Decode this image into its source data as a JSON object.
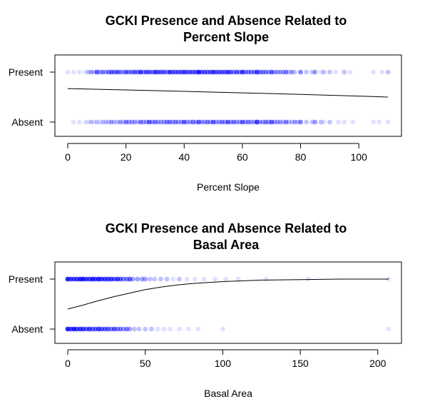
{
  "chart_data": [
    {
      "type": "scatter",
      "title_lines": [
        "GCKI Presence and Absence Related to",
        "Percent Slope"
      ],
      "xlabel": "Percent Slope",
      "ylabel": "",
      "xlim": [
        0,
        110
      ],
      "xticks": [
        0,
        20,
        40,
        60,
        80,
        100
      ],
      "yticks": [
        {
          "value": 1,
          "label": "Present"
        },
        {
          "value": 0,
          "label": "Absent"
        }
      ],
      "point_color": "#0000ff",
      "line_color": "#000000",
      "curve": [
        [
          0,
          0.67
        ],
        [
          20,
          0.643
        ],
        [
          40,
          0.615
        ],
        [
          60,
          0.585
        ],
        [
          80,
          0.555
        ],
        [
          100,
          0.52
        ],
        [
          110,
          0.5
        ]
      ],
      "present": [
        {
          "x": 0,
          "d": 1
        },
        {
          "x": 2,
          "d": 1
        },
        {
          "x": 4,
          "d": 1
        },
        {
          "x": 6,
          "d": 1
        },
        {
          "x": 7,
          "d": 2
        },
        {
          "x": 8,
          "d": 3
        },
        {
          "x": 9,
          "d": 2
        },
        {
          "x": 10,
          "d": 5
        },
        {
          "x": 11,
          "d": 3
        },
        {
          "x": 12,
          "d": 4
        },
        {
          "x": 13,
          "d": 3
        },
        {
          "x": 14,
          "d": 4
        },
        {
          "x": 15,
          "d": 5
        },
        {
          "x": 16,
          "d": 4
        },
        {
          "x": 17,
          "d": 5
        },
        {
          "x": 18,
          "d": 4
        },
        {
          "x": 19,
          "d": 3
        },
        {
          "x": 20,
          "d": 5
        },
        {
          "x": 21,
          "d": 4
        },
        {
          "x": 22,
          "d": 4
        },
        {
          "x": 23,
          "d": 5
        },
        {
          "x": 24,
          "d": 4
        },
        {
          "x": 25,
          "d": 6
        },
        {
          "x": 26,
          "d": 4
        },
        {
          "x": 27,
          "d": 5
        },
        {
          "x": 28,
          "d": 5
        },
        {
          "x": 29,
          "d": 4
        },
        {
          "x": 30,
          "d": 6
        },
        {
          "x": 31,
          "d": 5
        },
        {
          "x": 32,
          "d": 5
        },
        {
          "x": 33,
          "d": 5
        },
        {
          "x": 34,
          "d": 4
        },
        {
          "x": 35,
          "d": 6
        },
        {
          "x": 36,
          "d": 5
        },
        {
          "x": 37,
          "d": 5
        },
        {
          "x": 38,
          "d": 5
        },
        {
          "x": 39,
          "d": 5
        },
        {
          "x": 40,
          "d": 6
        },
        {
          "x": 41,
          "d": 5
        },
        {
          "x": 42,
          "d": 5
        },
        {
          "x": 43,
          "d": 5
        },
        {
          "x": 44,
          "d": 5
        },
        {
          "x": 45,
          "d": 7
        },
        {
          "x": 46,
          "d": 5
        },
        {
          "x": 47,
          "d": 5
        },
        {
          "x": 48,
          "d": 5
        },
        {
          "x": 49,
          "d": 5
        },
        {
          "x": 50,
          "d": 6
        },
        {
          "x": 51,
          "d": 5
        },
        {
          "x": 52,
          "d": 5
        },
        {
          "x": 53,
          "d": 5
        },
        {
          "x": 54,
          "d": 5
        },
        {
          "x": 55,
          "d": 6
        },
        {
          "x": 56,
          "d": 5
        },
        {
          "x": 57,
          "d": 4
        },
        {
          "x": 58,
          "d": 5
        },
        {
          "x": 59,
          "d": 4
        },
        {
          "x": 60,
          "d": 6
        },
        {
          "x": 61,
          "d": 4
        },
        {
          "x": 62,
          "d": 4
        },
        {
          "x": 63,
          "d": 4
        },
        {
          "x": 64,
          "d": 4
        },
        {
          "x": 65,
          "d": 6
        },
        {
          "x": 66,
          "d": 4
        },
        {
          "x": 67,
          "d": 4
        },
        {
          "x": 68,
          "d": 4
        },
        {
          "x": 69,
          "d": 3
        },
        {
          "x": 70,
          "d": 5
        },
        {
          "x": 71,
          "d": 3
        },
        {
          "x": 72,
          "d": 3
        },
        {
          "x": 73,
          "d": 3
        },
        {
          "x": 74,
          "d": 3
        },
        {
          "x": 75,
          "d": 4
        },
        {
          "x": 76,
          "d": 2
        },
        {
          "x": 77,
          "d": 3
        },
        {
          "x": 78,
          "d": 2
        },
        {
          "x": 80,
          "d": 4
        },
        {
          "x": 82,
          "d": 2
        },
        {
          "x": 84,
          "d": 2
        },
        {
          "x": 85,
          "d": 3
        },
        {
          "x": 87,
          "d": 1
        },
        {
          "x": 88,
          "d": 2
        },
        {
          "x": 90,
          "d": 2
        },
        {
          "x": 92,
          "d": 1
        },
        {
          "x": 95,
          "d": 2
        },
        {
          "x": 97,
          "d": 1
        },
        {
          "x": 105,
          "d": 1
        },
        {
          "x": 108,
          "d": 1
        },
        {
          "x": 110,
          "d": 2
        }
      ],
      "absent": [
        {
          "x": 2,
          "d": 1
        },
        {
          "x": 4,
          "d": 1
        },
        {
          "x": 6,
          "d": 1
        },
        {
          "x": 7,
          "d": 1
        },
        {
          "x": 8,
          "d": 2
        },
        {
          "x": 9,
          "d": 1
        },
        {
          "x": 10,
          "d": 2
        },
        {
          "x": 11,
          "d": 1
        },
        {
          "x": 12,
          "d": 2
        },
        {
          "x": 13,
          "d": 2
        },
        {
          "x": 14,
          "d": 2
        },
        {
          "x": 15,
          "d": 3
        },
        {
          "x": 16,
          "d": 2
        },
        {
          "x": 17,
          "d": 2
        },
        {
          "x": 18,
          "d": 3
        },
        {
          "x": 19,
          "d": 2
        },
        {
          "x": 20,
          "d": 4
        },
        {
          "x": 21,
          "d": 3
        },
        {
          "x": 22,
          "d": 3
        },
        {
          "x": 23,
          "d": 3
        },
        {
          "x": 24,
          "d": 2
        },
        {
          "x": 25,
          "d": 4
        },
        {
          "x": 26,
          "d": 3
        },
        {
          "x": 27,
          "d": 3
        },
        {
          "x": 28,
          "d": 5
        },
        {
          "x": 29,
          "d": 3
        },
        {
          "x": 30,
          "d": 4
        },
        {
          "x": 31,
          "d": 3
        },
        {
          "x": 32,
          "d": 3
        },
        {
          "x": 33,
          "d": 3
        },
        {
          "x": 34,
          "d": 4
        },
        {
          "x": 35,
          "d": 4
        },
        {
          "x": 36,
          "d": 3
        },
        {
          "x": 37,
          "d": 4
        },
        {
          "x": 38,
          "d": 3
        },
        {
          "x": 39,
          "d": 3
        },
        {
          "x": 40,
          "d": 5
        },
        {
          "x": 41,
          "d": 3
        },
        {
          "x": 42,
          "d": 3
        },
        {
          "x": 43,
          "d": 4
        },
        {
          "x": 44,
          "d": 3
        },
        {
          "x": 45,
          "d": 5
        },
        {
          "x": 46,
          "d": 3
        },
        {
          "x": 47,
          "d": 3
        },
        {
          "x": 48,
          "d": 4
        },
        {
          "x": 49,
          "d": 3
        },
        {
          "x": 50,
          "d": 5
        },
        {
          "x": 51,
          "d": 3
        },
        {
          "x": 52,
          "d": 3
        },
        {
          "x": 53,
          "d": 4
        },
        {
          "x": 54,
          "d": 3
        },
        {
          "x": 55,
          "d": 5
        },
        {
          "x": 56,
          "d": 3
        },
        {
          "x": 57,
          "d": 4
        },
        {
          "x": 58,
          "d": 3
        },
        {
          "x": 59,
          "d": 3
        },
        {
          "x": 60,
          "d": 5
        },
        {
          "x": 61,
          "d": 3
        },
        {
          "x": 62,
          "d": 4
        },
        {
          "x": 63,
          "d": 3
        },
        {
          "x": 64,
          "d": 3
        },
        {
          "x": 65,
          "d": 6
        },
        {
          "x": 66,
          "d": 3
        },
        {
          "x": 67,
          "d": 3
        },
        {
          "x": 68,
          "d": 4
        },
        {
          "x": 69,
          "d": 3
        },
        {
          "x": 70,
          "d": 5
        },
        {
          "x": 71,
          "d": 3
        },
        {
          "x": 72,
          "d": 3
        },
        {
          "x": 73,
          "d": 3
        },
        {
          "x": 74,
          "d": 2
        },
        {
          "x": 75,
          "d": 4
        },
        {
          "x": 76,
          "d": 2
        },
        {
          "x": 77,
          "d": 2
        },
        {
          "x": 78,
          "d": 3
        },
        {
          "x": 79,
          "d": 2
        },
        {
          "x": 80,
          "d": 4
        },
        {
          "x": 82,
          "d": 2
        },
        {
          "x": 84,
          "d": 2
        },
        {
          "x": 85,
          "d": 3
        },
        {
          "x": 87,
          "d": 2
        },
        {
          "x": 88,
          "d": 1
        },
        {
          "x": 90,
          "d": 2
        },
        {
          "x": 93,
          "d": 1
        },
        {
          "x": 95,
          "d": 1
        },
        {
          "x": 98,
          "d": 1
        },
        {
          "x": 105,
          "d": 1
        },
        {
          "x": 107,
          "d": 1
        },
        {
          "x": 110,
          "d": 1
        }
      ]
    },
    {
      "type": "scatter",
      "title_lines": [
        "GCKI Presence and Absence Related to",
        "Basal Area"
      ],
      "xlabel": "Basal Area",
      "ylabel": "",
      "xlim": [
        0,
        207
      ],
      "xticks": [
        0,
        50,
        100,
        150,
        200
      ],
      "yticks": [
        {
          "value": 1,
          "label": "Present"
        },
        {
          "value": 0,
          "label": "Absent"
        }
      ],
      "point_color": "#0000ff",
      "line_color": "#000000",
      "curve": [
        [
          0,
          0.4
        ],
        [
          10,
          0.48
        ],
        [
          20,
          0.57
        ],
        [
          30,
          0.65
        ],
        [
          40,
          0.72
        ],
        [
          50,
          0.79
        ],
        [
          60,
          0.84
        ],
        [
          70,
          0.88
        ],
        [
          80,
          0.91
        ],
        [
          100,
          0.95
        ],
        [
          125,
          0.98
        ],
        [
          150,
          0.99
        ],
        [
          175,
          1.0
        ],
        [
          207,
          1.0
        ]
      ],
      "present": [
        {
          "x": 0,
          "d": 7
        },
        {
          "x": 2,
          "d": 6
        },
        {
          "x": 4,
          "d": 6
        },
        {
          "x": 6,
          "d": 6
        },
        {
          "x": 8,
          "d": 7
        },
        {
          "x": 10,
          "d": 7
        },
        {
          "x": 12,
          "d": 6
        },
        {
          "x": 14,
          "d": 6
        },
        {
          "x": 16,
          "d": 7
        },
        {
          "x": 18,
          "d": 6
        },
        {
          "x": 20,
          "d": 7
        },
        {
          "x": 22,
          "d": 6
        },
        {
          "x": 24,
          "d": 6
        },
        {
          "x": 26,
          "d": 6
        },
        {
          "x": 28,
          "d": 6
        },
        {
          "x": 30,
          "d": 5
        },
        {
          "x": 32,
          "d": 6
        },
        {
          "x": 34,
          "d": 5
        },
        {
          "x": 36,
          "d": 4
        },
        {
          "x": 38,
          "d": 4
        },
        {
          "x": 40,
          "d": 5
        },
        {
          "x": 42,
          "d": 3
        },
        {
          "x": 45,
          "d": 3
        },
        {
          "x": 48,
          "d": 3
        },
        {
          "x": 50,
          "d": 3
        },
        {
          "x": 53,
          "d": 2
        },
        {
          "x": 56,
          "d": 2
        },
        {
          "x": 60,
          "d": 2
        },
        {
          "x": 64,
          "d": 2
        },
        {
          "x": 68,
          "d": 1
        },
        {
          "x": 72,
          "d": 2
        },
        {
          "x": 77,
          "d": 1
        },
        {
          "x": 82,
          "d": 1
        },
        {
          "x": 88,
          "d": 1
        },
        {
          "x": 95,
          "d": 1
        },
        {
          "x": 102,
          "d": 1
        },
        {
          "x": 110,
          "d": 1
        },
        {
          "x": 128,
          "d": 1
        },
        {
          "x": 155,
          "d": 1
        },
        {
          "x": 207,
          "d": 1
        }
      ],
      "absent": [
        {
          "x": 0,
          "d": 7
        },
        {
          "x": 2,
          "d": 6
        },
        {
          "x": 4,
          "d": 7
        },
        {
          "x": 6,
          "d": 6
        },
        {
          "x": 8,
          "d": 6
        },
        {
          "x": 10,
          "d": 6
        },
        {
          "x": 12,
          "d": 5
        },
        {
          "x": 14,
          "d": 6
        },
        {
          "x": 16,
          "d": 5
        },
        {
          "x": 18,
          "d": 5
        },
        {
          "x": 20,
          "d": 6
        },
        {
          "x": 22,
          "d": 5
        },
        {
          "x": 24,
          "d": 5
        },
        {
          "x": 26,
          "d": 5
        },
        {
          "x": 28,
          "d": 4
        },
        {
          "x": 30,
          "d": 5
        },
        {
          "x": 32,
          "d": 4
        },
        {
          "x": 34,
          "d": 4
        },
        {
          "x": 36,
          "d": 3
        },
        {
          "x": 38,
          "d": 4
        },
        {
          "x": 40,
          "d": 3
        },
        {
          "x": 43,
          "d": 2
        },
        {
          "x": 46,
          "d": 2
        },
        {
          "x": 50,
          "d": 2
        },
        {
          "x": 54,
          "d": 2
        },
        {
          "x": 58,
          "d": 1
        },
        {
          "x": 62,
          "d": 1
        },
        {
          "x": 66,
          "d": 1
        },
        {
          "x": 72,
          "d": 1
        },
        {
          "x": 78,
          "d": 1
        },
        {
          "x": 84,
          "d": 1
        },
        {
          "x": 100,
          "d": 1
        },
        {
          "x": 207,
          "d": 1
        }
      ]
    }
  ]
}
